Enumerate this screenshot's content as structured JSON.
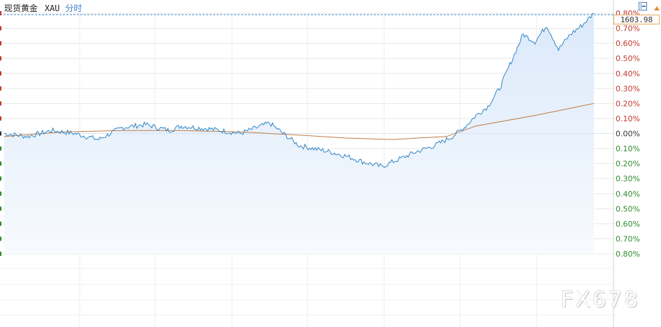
{
  "header": {
    "instrument": "现货黄金",
    "symbol": "XAU",
    "period": "分时"
  },
  "last_price": "1603.98",
  "watermark": "FX678",
  "colors": {
    "price_line": "#2f86c6",
    "average_line": "#c07a45",
    "area_fill": "#dbe9fa",
    "up_label": "#c0392b",
    "zero_label": "#333333",
    "down_label": "#2e8b2e",
    "grid": "#e8e8e8",
    "reference_line": "#3b85c8"
  },
  "chart_data": {
    "type": "line",
    "title": "",
    "xlabel": "",
    "ylabel": "",
    "ylim": [
      -0.8,
      0.8
    ],
    "y_ticks": [
      "0.80%",
      "0.70%",
      "0.60%",
      "0.50%",
      "0.40%",
      "0.30%",
      "0.20%",
      "0.10%",
      "0.00%",
      "0.10%",
      "0.20%",
      "0.30%",
      "0.40%",
      "0.50%",
      "0.60%",
      "0.70%",
      "0.80%"
    ],
    "grid": true,
    "series": [
      {
        "x": [
          0,
          4,
          8,
          12,
          16,
          20,
          24,
          28,
          30,
          35,
          40,
          45,
          50,
          55,
          58,
          61,
          64,
          67,
          70,
          73,
          76,
          78,
          80,
          82,
          84,
          86,
          88,
          90,
          92,
          94,
          96,
          98,
          100
        ],
        "values": [
          0.0,
          -0.02,
          0.02,
          0.0,
          -0.04,
          0.04,
          0.06,
          0.02,
          0.05,
          0.03,
          0.0,
          0.07,
          -0.08,
          -0.12,
          -0.15,
          -0.19,
          -0.22,
          -0.17,
          -0.12,
          -0.08,
          -0.02,
          0.04,
          0.12,
          0.18,
          0.3,
          0.48,
          0.66,
          0.61,
          0.72,
          0.56,
          0.66,
          0.72,
          0.8
        ]
      },
      {
        "x": [
          0,
          10,
          20,
          30,
          40,
          50,
          58,
          66,
          70,
          75,
          80,
          90,
          100
        ],
        "values": [
          -0.02,
          0.01,
          0.02,
          0.02,
          0.01,
          -0.01,
          -0.03,
          -0.04,
          -0.03,
          -0.02,
          0.05,
          0.12,
          0.2
        ]
      }
    ]
  }
}
